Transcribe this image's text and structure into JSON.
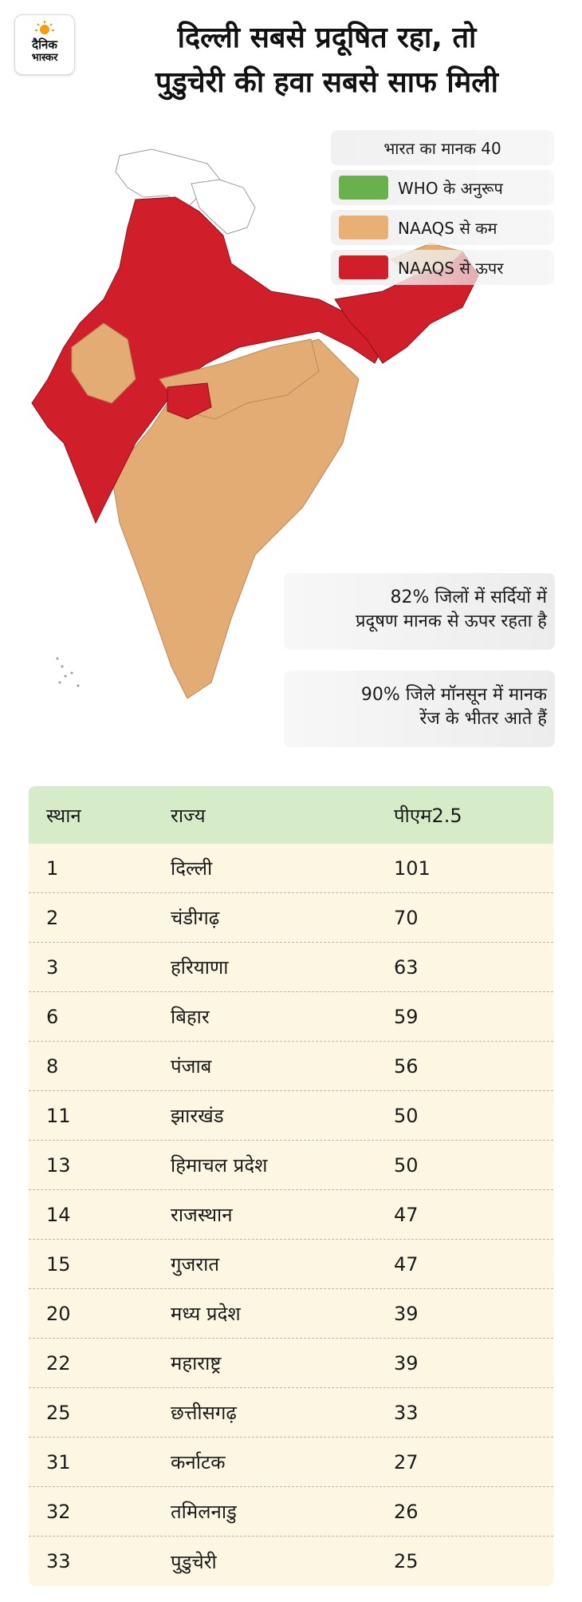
{
  "logo": {
    "line1": "दैनिक",
    "line2": "भास्कर"
  },
  "headline": {
    "line1": "दिल्ली सबसे प्रदूषित रहा, तो",
    "line2": "पुडुचेरी की हवा सबसे साफ मिली"
  },
  "legend": {
    "title": "भारत का मानक 40",
    "items": [
      {
        "label": "WHO के अनुरूप",
        "color": "#6ab04c"
      },
      {
        "label": "NAAQS से कम",
        "color": "#e8b074"
      },
      {
        "label": "NAAQS से ऊपर",
        "color": "#d01f2a"
      }
    ]
  },
  "notes": {
    "winter": {
      "line1": "82% जिलों में सर्दियों में",
      "line2": "प्रदूषण मानक से ऊपर रहता है"
    },
    "monsoon": {
      "line1": "90% जिले मॉनसून में मानक",
      "line2": "रेंज के भीतर आते हैं"
    }
  },
  "table": {
    "headers": {
      "rank": "स्थान",
      "state": "राज्य",
      "pm": "पीएम2.5"
    },
    "rows": [
      {
        "rank": "1",
        "state": "दिल्ली",
        "pm": "101"
      },
      {
        "rank": "2",
        "state": "चंडीगढ़",
        "pm": "70"
      },
      {
        "rank": "3",
        "state": "हरियाणा",
        "pm": "63"
      },
      {
        "rank": "6",
        "state": "बिहार",
        "pm": "59"
      },
      {
        "rank": "8",
        "state": "पंजाब",
        "pm": "56"
      },
      {
        "rank": "11",
        "state": "झारखंड",
        "pm": "50"
      },
      {
        "rank": "13",
        "state": "हिमाचल प्रदेश",
        "pm": "50"
      },
      {
        "rank": "14",
        "state": "राजस्थान",
        "pm": "47"
      },
      {
        "rank": "15",
        "state": "गुजरात",
        "pm": "47"
      },
      {
        "rank": "20",
        "state": "मध्य प्रदेश",
        "pm": "39"
      },
      {
        "rank": "22",
        "state": "महाराष्ट्र",
        "pm": "39"
      },
      {
        "rank": "25",
        "state": "छत्तीसगढ़",
        "pm": "33"
      },
      {
        "rank": "31",
        "state": "कर्नाटक",
        "pm": "27"
      },
      {
        "rank": "32",
        "state": "तमिलनाडु",
        "pm": "26"
      },
      {
        "rank": "33",
        "state": "पुडुचेरी",
        "pm": "25"
      }
    ]
  }
}
